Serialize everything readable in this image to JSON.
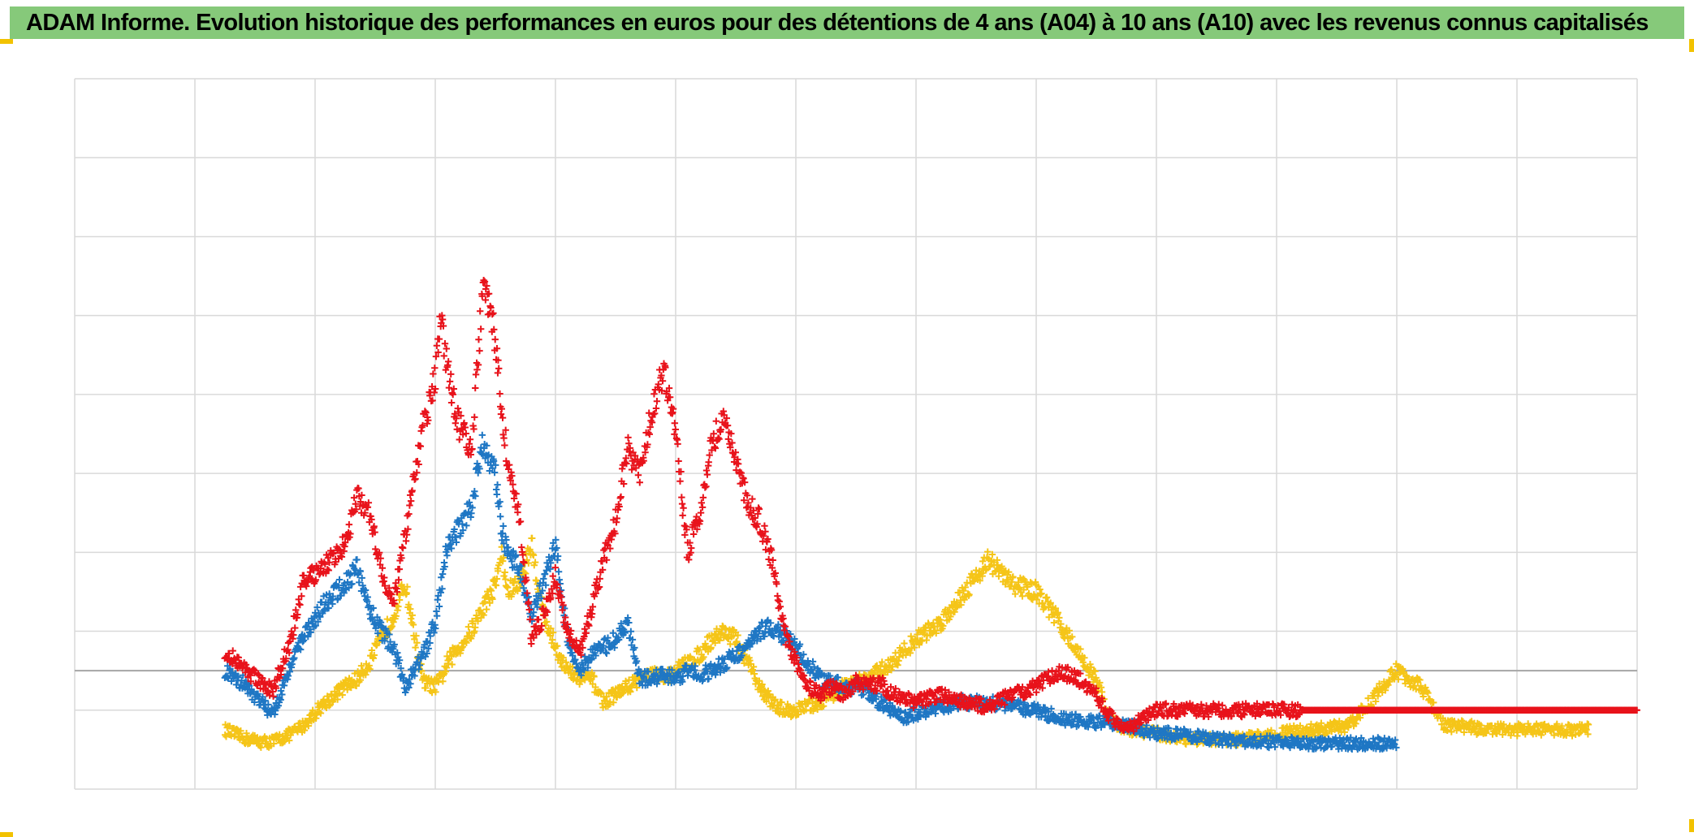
{
  "title": "ADAM Informe. Evolution historique des performances en euros pour des détentions de 4 ans (A04) à 10 ans (A10) avec les revenus connus capitalisés",
  "colors": {
    "title_bar": "#86c97a",
    "corner": "#f2c200",
    "grid": "#d9d9d9",
    "baseline": "#a6a6a6"
  },
  "chart_data": {
    "type": "scatter",
    "title": "",
    "xlabel": "",
    "ylabel": "",
    "x_range": [
      0,
      13
    ],
    "y_range": [
      0,
      9
    ],
    "reference_line_y": 1.5,
    "grid": true,
    "marker": "cross",
    "series": [
      {
        "color": "#e8131b",
        "x": [
          1.25,
          1.4,
          1.55,
          1.65,
          1.8,
          1.9,
          2.05,
          2.25,
          2.35,
          2.45,
          2.55,
          2.65,
          2.75,
          2.9,
          3.0,
          3.05,
          3.1,
          3.2,
          3.3,
          3.4,
          3.5,
          3.55,
          3.6,
          3.7,
          3.8,
          3.9,
          4.0,
          4.1,
          4.2,
          4.3,
          4.4,
          4.5,
          4.6,
          4.7,
          4.8,
          4.9,
          5.0,
          5.1,
          5.2,
          5.3,
          5.4,
          5.5,
          5.6,
          5.7,
          5.8,
          5.9,
          6.0,
          6.1,
          6.2,
          6.3,
          6.4,
          6.5,
          6.6,
          6.7,
          6.8,
          6.9,
          7.0,
          7.2,
          7.4,
          7.6,
          7.8,
          8.0,
          8.2,
          8.4,
          8.5,
          8.6,
          8.7,
          8.8,
          9.0,
          9.2,
          9.4,
          9.6,
          9.8,
          10.0,
          10.5,
          11.0,
          11.5,
          12.0,
          12.5,
          13.0
        ],
        "y": [
          1.75,
          1.55,
          1.35,
          1.25,
          1.9,
          2.6,
          2.8,
          3.1,
          3.7,
          3.5,
          2.8,
          2.3,
          3.2,
          4.6,
          5.2,
          6.0,
          5.3,
          4.6,
          4.3,
          6.4,
          5.7,
          4.8,
          4.2,
          3.4,
          1.9,
          2.2,
          2.7,
          2.0,
          1.7,
          2.3,
          2.9,
          3.4,
          4.3,
          4.0,
          4.8,
          5.3,
          4.5,
          3.0,
          3.5,
          4.4,
          4.7,
          4.2,
          3.6,
          3.4,
          2.9,
          2.0,
          1.6,
          1.3,
          1.2,
          1.3,
          1.2,
          1.35,
          1.3,
          1.35,
          1.2,
          1.15,
          1.1,
          1.2,
          1.1,
          1.05,
          1.2,
          1.3,
          1.5,
          1.35,
          1.2,
          0.95,
          0.8,
          0.8,
          1.0,
          1.0,
          1.0,
          1.0,
          1.0,
          1.0,
          1.0,
          1.0,
          1.0,
          1.0,
          1.0,
          1.0
        ]
      },
      {
        "color": "#1f77c4",
        "x": [
          1.25,
          1.4,
          1.55,
          1.65,
          1.8,
          1.9,
          2.05,
          2.25,
          2.35,
          2.45,
          2.55,
          2.65,
          2.75,
          2.9,
          3.0,
          3.05,
          3.1,
          3.2,
          3.3,
          3.4,
          3.5,
          3.55,
          3.6,
          3.7,
          3.8,
          3.9,
          4.0,
          4.1,
          4.2,
          4.3,
          4.4,
          4.5,
          4.6,
          4.7,
          4.8,
          4.9,
          5.0,
          5.1,
          5.2,
          5.3,
          5.4,
          5.5,
          5.6,
          5.7,
          5.8,
          5.9,
          6.0,
          6.1,
          6.2,
          6.3,
          6.4,
          6.5,
          6.6,
          6.7,
          6.8,
          6.9,
          7.0,
          7.2,
          7.4,
          7.6,
          7.8,
          8.0,
          8.2,
          8.4,
          8.5,
          8.6,
          8.7,
          8.8,
          9.0,
          9.2,
          9.4,
          9.6,
          9.8,
          10.0,
          10.3,
          10.6,
          11.0
        ],
        "y": [
          1.5,
          1.35,
          1.1,
          0.95,
          1.6,
          1.9,
          2.3,
          2.6,
          2.8,
          2.3,
          2.0,
          1.8,
          1.3,
          1.7,
          2.1,
          2.6,
          3.1,
          3.3,
          3.6,
          4.4,
          4.0,
          3.3,
          3.0,
          2.8,
          2.2,
          2.6,
          3.1,
          1.9,
          1.5,
          1.7,
          1.8,
          1.9,
          2.1,
          1.4,
          1.4,
          1.45,
          1.4,
          1.5,
          1.45,
          1.5,
          1.6,
          1.7,
          1.8,
          2.0,
          2.05,
          1.95,
          1.8,
          1.6,
          1.4,
          1.35,
          1.3,
          1.3,
          1.2,
          1.1,
          1.0,
          0.9,
          0.95,
          1.05,
          1.1,
          1.1,
          1.05,
          1.0,
          0.9,
          0.85,
          0.85,
          0.85,
          0.8,
          0.8,
          0.7,
          0.7,
          0.65,
          0.62,
          0.6,
          0.6,
          0.58,
          0.58,
          0.58
        ]
      },
      {
        "color": "#f5c518",
        "x": [
          1.25,
          1.4,
          1.55,
          1.65,
          1.8,
          1.9,
          2.05,
          2.25,
          2.35,
          2.45,
          2.55,
          2.65,
          2.75,
          2.9,
          3.0,
          3.05,
          3.1,
          3.2,
          3.3,
          3.4,
          3.5,
          3.55,
          3.6,
          3.7,
          3.8,
          3.9,
          4.0,
          4.1,
          4.2,
          4.3,
          4.4,
          4.5,
          4.6,
          4.7,
          4.8,
          4.9,
          5.0,
          5.1,
          5.2,
          5.3,
          5.4,
          5.5,
          5.6,
          5.7,
          5.8,
          5.9,
          6.0,
          6.1,
          6.2,
          6.3,
          6.4,
          6.5,
          6.6,
          6.7,
          6.8,
          6.9,
          7.0,
          7.2,
          7.4,
          7.6,
          7.8,
          8.0,
          8.2,
          8.4,
          8.5,
          8.6,
          8.7,
          8.8,
          9.0,
          9.2,
          9.4,
          9.6,
          9.8,
          10.0,
          10.3,
          10.6,
          11.0,
          11.2,
          11.4,
          11.5,
          11.6,
          11.7,
          11.8,
          12.0,
          12.2,
          12.4,
          12.6
        ],
        "y": [
          0.75,
          0.65,
          0.6,
          0.6,
          0.7,
          0.8,
          1.05,
          1.3,
          1.4,
          1.6,
          1.9,
          2.2,
          2.6,
          1.35,
          1.3,
          1.4,
          1.6,
          1.8,
          2.0,
          2.3,
          2.6,
          3.0,
          2.5,
          2.6,
          3.1,
          2.2,
          1.8,
          1.5,
          1.4,
          1.4,
          1.1,
          1.2,
          1.3,
          1.4,
          1.45,
          1.4,
          1.5,
          1.6,
          1.7,
          1.9,
          2.0,
          1.9,
          1.6,
          1.3,
          1.1,
          1.0,
          1.0,
          1.05,
          1.1,
          1.2,
          1.3,
          1.35,
          1.4,
          1.5,
          1.6,
          1.75,
          1.9,
          2.1,
          2.5,
          2.9,
          2.6,
          2.5,
          2.1,
          1.6,
          1.4,
          0.9,
          0.8,
          0.75,
          0.7,
          0.65,
          0.62,
          0.62,
          0.65,
          0.7,
          0.75,
          0.8,
          1.5,
          1.3,
          0.8,
          0.8,
          0.8,
          0.75,
          0.75,
          0.75,
          0.75,
          0.75,
          0.75
        ]
      }
    ]
  }
}
